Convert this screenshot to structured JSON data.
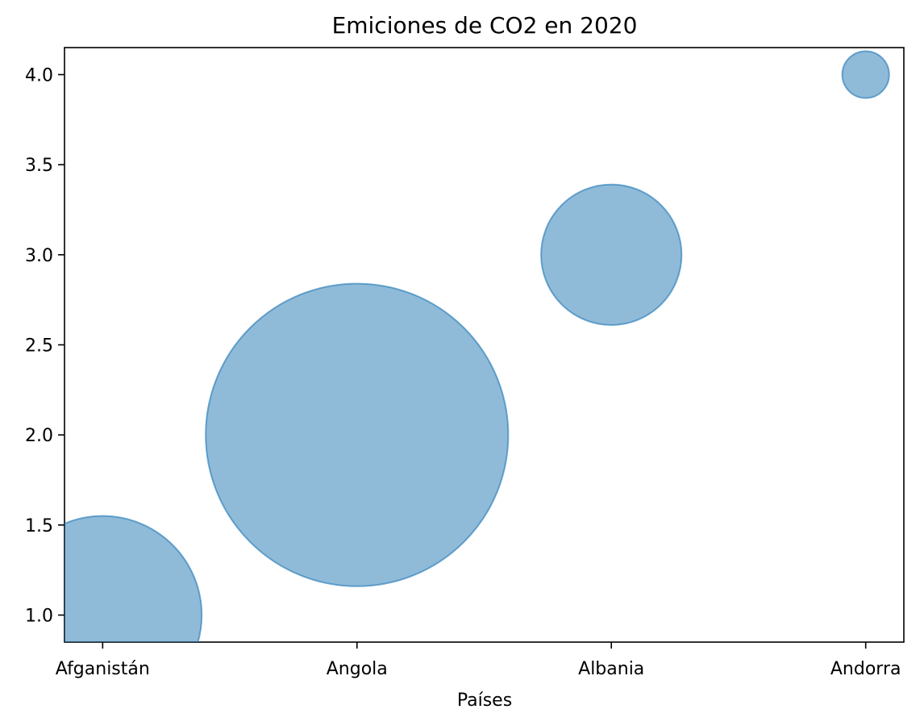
{
  "chart_data": {
    "type": "scatter",
    "title": "Emiciones de CO2 en 2020",
    "xlabel": "Países",
    "ylabel": "",
    "categories": [
      "Afganistán",
      "Angola",
      "Albania",
      "Andorra"
    ],
    "x": [
      0,
      1,
      2,
      3
    ],
    "y": [
      1.0,
      2.0,
      3.0,
      4.0
    ],
    "bubble_radius_y_units": [
      0.55,
      0.84,
      0.39,
      0.13
    ],
    "ylim": [
      0.85,
      4.15
    ],
    "xlim": [
      -0.15,
      3.15
    ],
    "yticks": [
      "1.0",
      "1.5",
      "2.0",
      "2.5",
      "3.0",
      "3.5",
      "4.0"
    ],
    "grid": false,
    "legend": "none",
    "colors": {
      "bubble_fill": "#1f77b4",
      "bubble_opacity": 0.5
    }
  }
}
